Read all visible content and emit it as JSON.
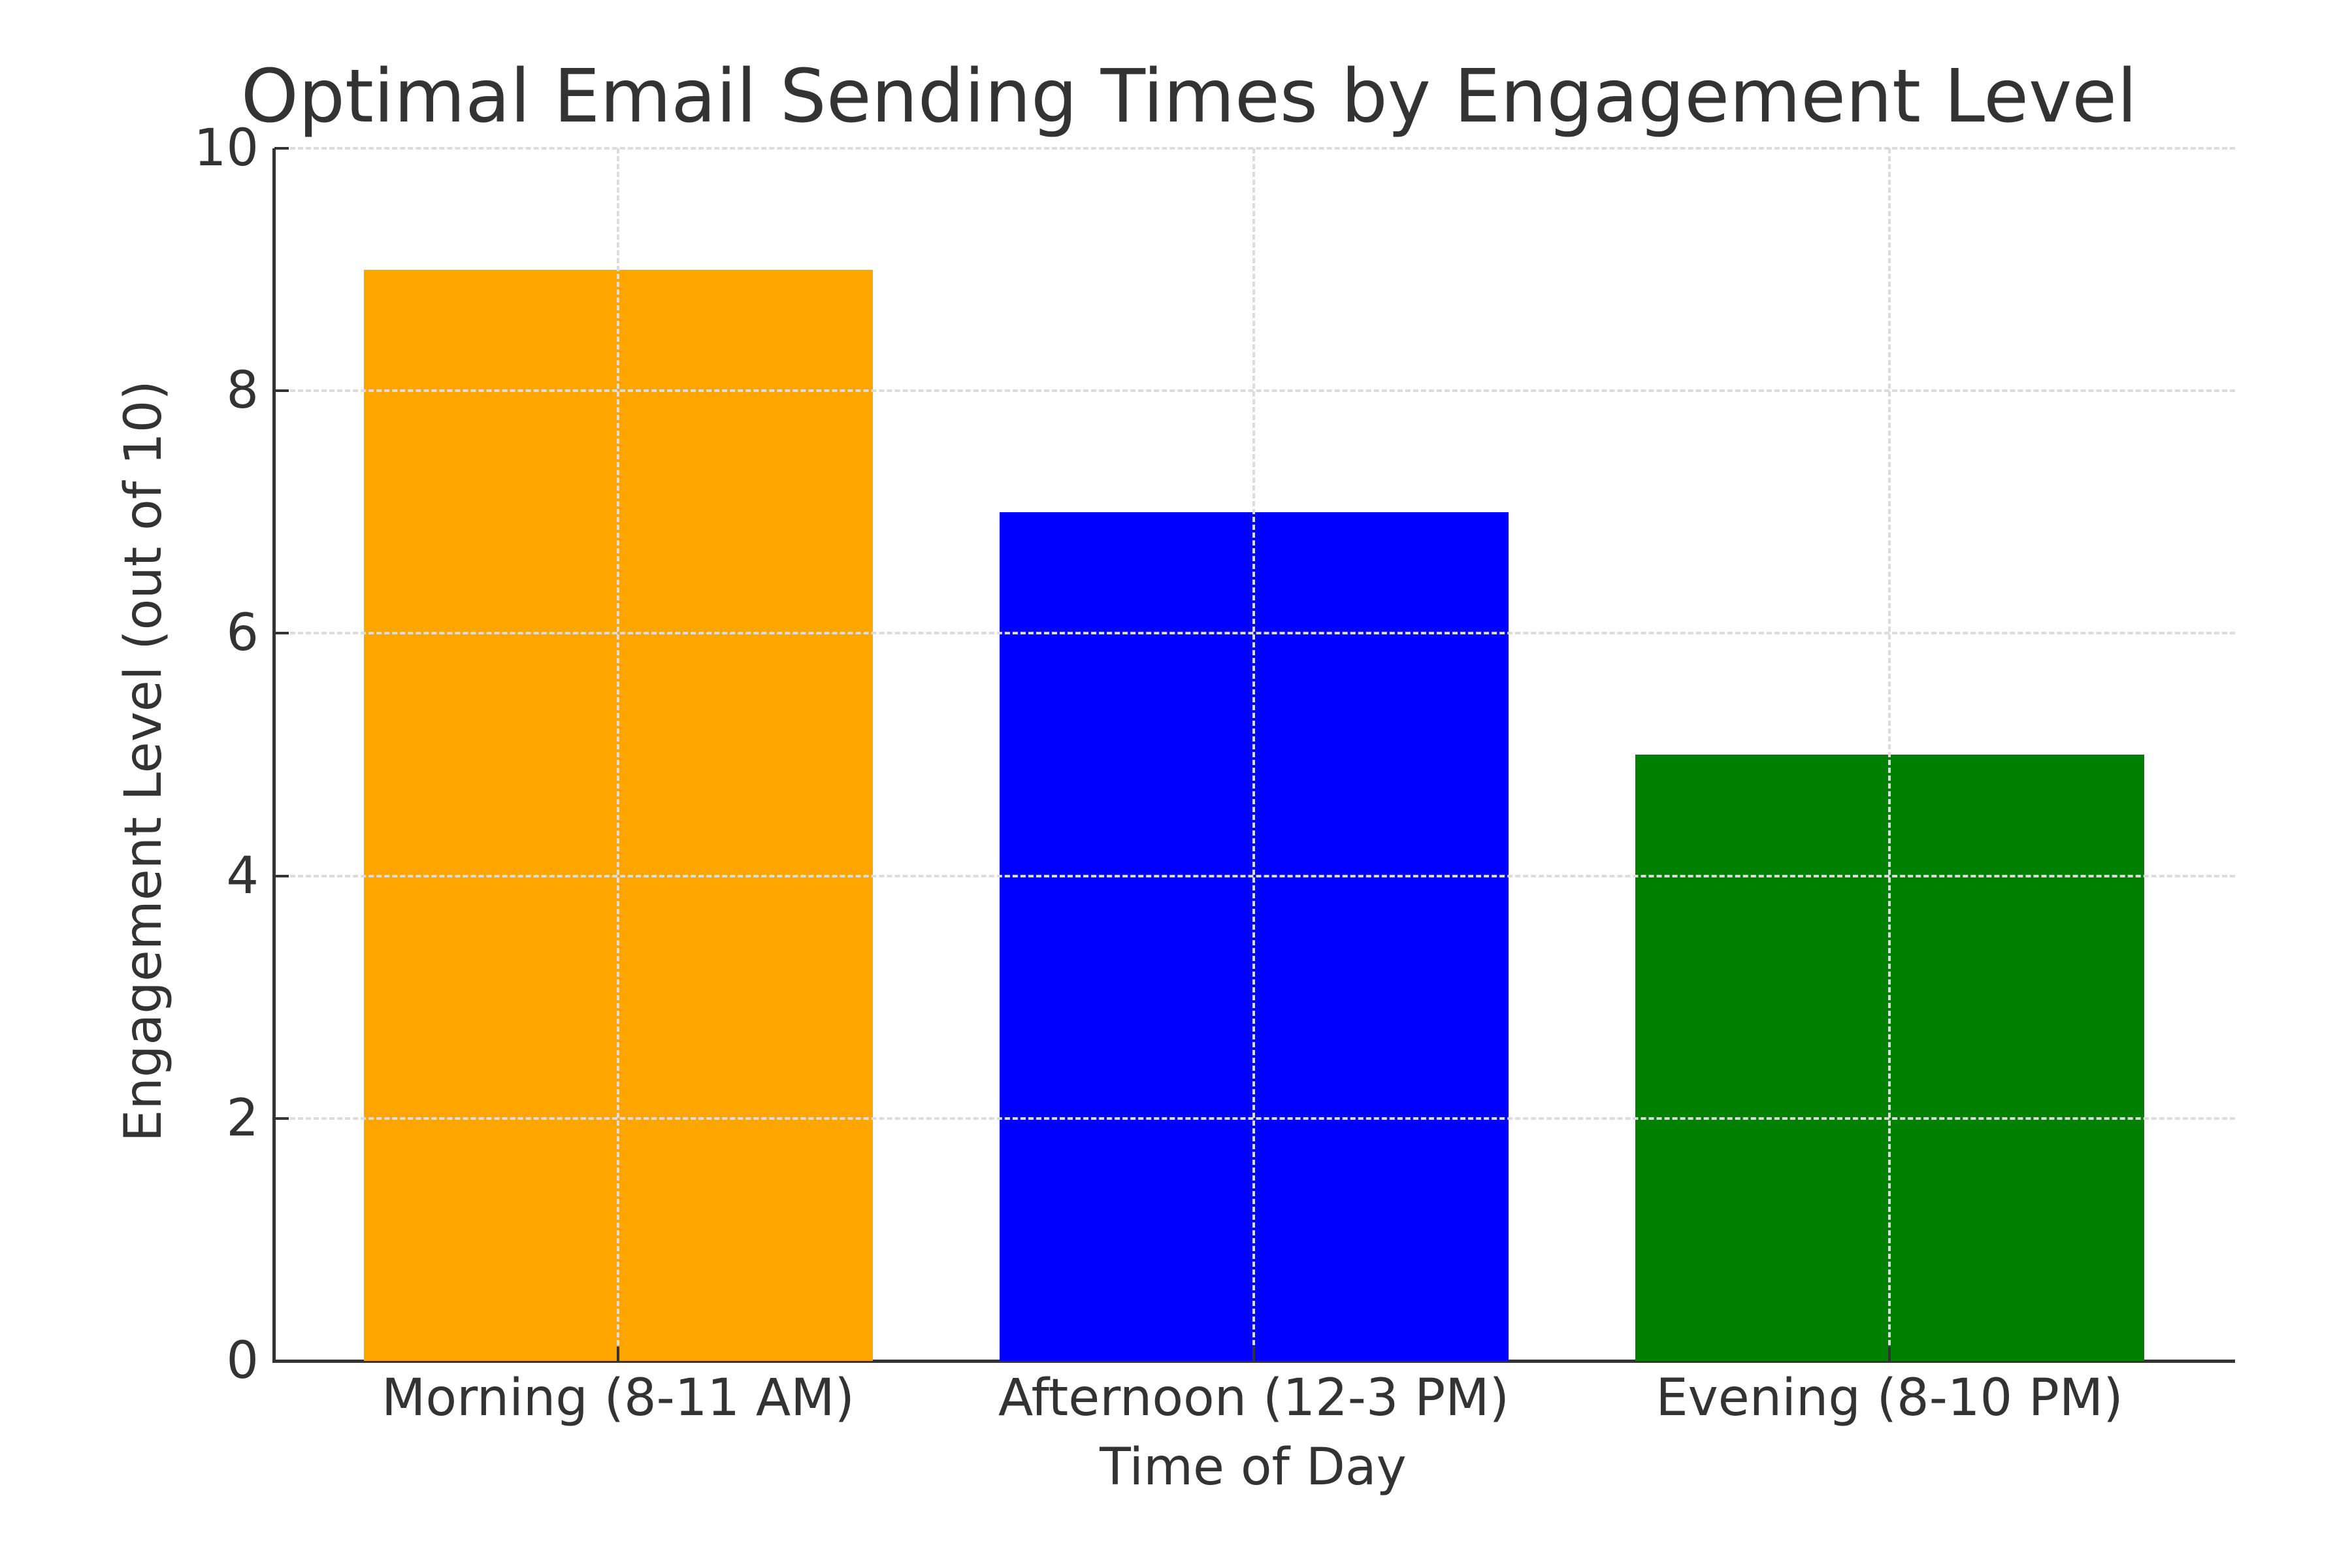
{
  "chart_data": {
    "type": "bar",
    "title": "Optimal Email Sending Times by Engagement Level",
    "xlabel": "Time of Day",
    "ylabel": "Engagement Level (out of 10)",
    "categories": [
      "Morning (8-11 AM)",
      "Afternoon (12-3 PM)",
      "Evening (8-10 PM)"
    ],
    "values": [
      9,
      7,
      5
    ],
    "colors": [
      "#ffa500",
      "#0000ff",
      "#008000"
    ],
    "ylim": [
      0,
      10
    ],
    "yticks": [
      0,
      2,
      4,
      6,
      8,
      10
    ],
    "ytick_labels": [
      "0",
      "2",
      "4",
      "6",
      "8",
      "10"
    ],
    "grid": true,
    "grid_style": "dashed",
    "grid_color": "#dcdcdc",
    "legend": null
  }
}
